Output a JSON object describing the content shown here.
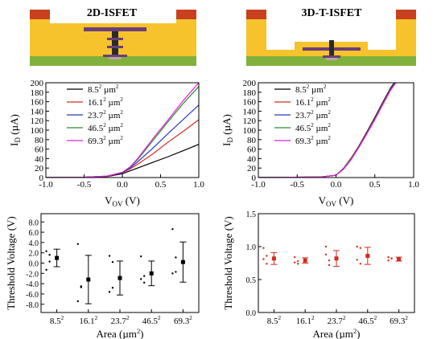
{
  "colors": {
    "substrate_green": "#7fb13c",
    "dielectric_yellow": "#f6c32c",
    "contact_red": "#c8401e",
    "gate_purple": "#6b3e7c",
    "via_dark": "#2a2a2a",
    "errorbar_black": "#000000",
    "errorbar_red": "#d42a1e"
  },
  "chart_data": [
    {
      "type": "diagram",
      "title": "2D-ISFET"
    },
    {
      "type": "diagram",
      "title": "3D-T-ISFET"
    },
    {
      "type": "line",
      "xlabel_main": "V",
      "xlabel_sub": "OV",
      "xlabel_unit": " (V)",
      "ylabel_main": "I",
      "ylabel_sub": "D",
      "ylabel_unit": " (µA)",
      "xlim": [
        -1.0,
        1.0
      ],
      "ylim": [
        0,
        200
      ],
      "xticks": [
        "-1.0",
        "-0.5",
        "0.0",
        "0.5",
        "1.0"
      ],
      "yticks": [
        "0",
        "20",
        "40",
        "60",
        "80",
        "100",
        "120",
        "140",
        "160",
        "180",
        "200"
      ],
      "legend_position": "top-left",
      "series": [
        {
          "name": "8.5² µm²",
          "color": "#000000",
          "x": [
            -1.0,
            -0.5,
            -0.2,
            0.0,
            0.1,
            0.2,
            0.4,
            0.6,
            0.8,
            1.0
          ],
          "y": [
            0,
            0.5,
            2,
            8,
            14,
            20,
            32,
            44,
            57,
            70
          ]
        },
        {
          "name": "16.1² µm²",
          "color": "#d42a1e",
          "x": [
            -1.0,
            -0.5,
            -0.2,
            0.0,
            0.1,
            0.2,
            0.4,
            0.6,
            0.8,
            1.0
          ],
          "y": [
            0,
            0.6,
            2.5,
            10,
            18,
            28,
            50,
            75,
            98,
            122
          ]
        },
        {
          "name": "23.7² µm²",
          "color": "#2a3bb8",
          "x": [
            -1.0,
            -0.5,
            -0.2,
            0.0,
            0.1,
            0.2,
            0.4,
            0.6,
            0.8,
            1.0
          ],
          "y": [
            0,
            0.6,
            2.8,
            10,
            20,
            33,
            62,
            93,
            123,
            153
          ]
        },
        {
          "name": "46.5² µm²",
          "color": "#2e8b2e",
          "x": [
            -1.0,
            -0.5,
            -0.2,
            0.0,
            0.1,
            0.2,
            0.4,
            0.6,
            0.8,
            1.0
          ],
          "y": [
            0,
            0.7,
            3,
            11,
            22,
            38,
            78,
            118,
            157,
            192
          ]
        },
        {
          "name": "69.3² µm²",
          "color": "#e021d8",
          "x": [
            -1.0,
            -0.5,
            -0.2,
            0.0,
            0.1,
            0.2,
            0.4,
            0.6,
            0.8,
            1.0
          ],
          "y": [
            0,
            0.7,
            3,
            11,
            22,
            40,
            82,
            122,
            163,
            200
          ]
        }
      ]
    },
    {
      "type": "line",
      "xlabel_main": "V",
      "xlabel_sub": "OV",
      "xlabel_unit": " (V)",
      "ylabel_main": "I",
      "ylabel_sub": "D",
      "ylabel_unit": " (µA)",
      "xlim": [
        -1.0,
        1.0
      ],
      "ylim": [
        0,
        200
      ],
      "xticks": [
        "-1.0",
        "-0.5",
        "0.0",
        "0.5",
        "1.0"
      ],
      "yticks": [
        "0",
        "20",
        "40",
        "60",
        "80",
        "100",
        "120",
        "140",
        "160",
        "180",
        "200"
      ],
      "legend_position": "top-right",
      "series": [
        {
          "name": "8.5² µm²",
          "color": "#000000",
          "x": [
            -1.0,
            -0.2,
            0.0,
            0.1,
            0.2,
            0.3,
            0.4,
            0.5,
            0.6,
            0.7,
            0.75
          ],
          "y": [
            0,
            1,
            5,
            20,
            42,
            68,
            97,
            127,
            158,
            188,
            200
          ]
        },
        {
          "name": "16.1² µm²",
          "color": "#d42a1e",
          "x": [
            -1.0,
            -0.2,
            0.0,
            0.1,
            0.2,
            0.3,
            0.4,
            0.5,
            0.6,
            0.7,
            0.76
          ],
          "y": [
            0,
            1,
            5,
            19,
            41,
            67,
            95,
            125,
            156,
            186,
            200
          ]
        },
        {
          "name": "23.7² µm²",
          "color": "#2a3bb8",
          "x": [
            -1.0,
            -0.2,
            0.0,
            0.1,
            0.2,
            0.3,
            0.4,
            0.5,
            0.6,
            0.7,
            0.76
          ],
          "y": [
            0,
            1,
            5,
            19,
            40,
            66,
            94,
            124,
            155,
            185,
            200
          ]
        },
        {
          "name": "46.5² µm²",
          "color": "#2e8b2e",
          "x": [
            -1.0,
            -0.2,
            0.0,
            0.1,
            0.2,
            0.3,
            0.4,
            0.5,
            0.6,
            0.7,
            0.77
          ],
          "y": [
            0,
            1,
            5,
            19,
            40,
            65,
            93,
            123,
            154,
            184,
            200
          ]
        },
        {
          "name": "69.3² µm²",
          "color": "#e021d8",
          "x": [
            -1.0,
            -0.2,
            0.0,
            0.1,
            0.2,
            0.3,
            0.4,
            0.5,
            0.6,
            0.7,
            0.77
          ],
          "y": [
            0,
            1,
            5,
            18,
            39,
            65,
            93,
            122,
            153,
            183,
            200
          ]
        }
      ]
    },
    {
      "type": "scatter",
      "xlabel": "Area (µm²)",
      "ylabel": "Threshold Voltage (V)",
      "ylim": [
        -9.6,
        9.6
      ],
      "yticks": [
        "8.0",
        "6.0",
        "4.0",
        "2.0",
        "0.0",
        "-2.0",
        "-4.0",
        "-6.0",
        "-8.0"
      ],
      "ytick_values": [
        8,
        6,
        4,
        2,
        0,
        -2,
        -4,
        -6,
        -8
      ],
      "categories": [
        "8.5²",
        "16.1²",
        "23.7²",
        "46.5²",
        "69.3²"
      ],
      "color": "#000000",
      "means": [
        1.0,
        -3.2,
        -2.9,
        -2.0,
        0.2
      ],
      "errors": [
        1.7,
        4.7,
        3.3,
        2.4,
        3.9
      ],
      "points": [
        [
          2.3,
          1.6,
          -1.3,
          0.3
        ],
        [
          3.7,
          -4.5,
          -7.4,
          -4.7
        ],
        [
          1.4,
          -4.8,
          -5.6,
          0.2
        ],
        [
          1.3,
          -2.5,
          -3.1,
          -3.8
        ],
        [
          6.6,
          -1.7,
          -2.0,
          1.1
        ]
      ]
    },
    {
      "type": "scatter",
      "xlabel": "Area (µm²)",
      "ylabel": "Threshold Voltage (V)",
      "ylim": [
        0.0,
        1.5
      ],
      "yticks": [
        "0.0",
        "0.5",
        "1.0",
        "1.5"
      ],
      "ytick_values": [
        0.0,
        0.5,
        1.0,
        1.5
      ],
      "categories": [
        "8.5²",
        "16.1²",
        "23.7²",
        "46.5²",
        "69.3²"
      ],
      "color": "#d42a1e",
      "means": [
        0.82,
        0.79,
        0.82,
        0.86,
        0.81
      ],
      "errors": [
        0.09,
        0.04,
        0.12,
        0.13,
        0.03
      ],
      "points": [
        [
          0.98,
          0.74,
          0.81,
          0.86
        ],
        [
          0.84,
          0.78,
          0.76,
          0.74
        ],
        [
          1.0,
          0.72,
          0.88,
          0.79
        ],
        [
          1.0,
          0.74,
          0.8,
          0.98
        ],
        [
          0.84,
          0.82,
          0.79,
          0.82
        ]
      ]
    }
  ]
}
